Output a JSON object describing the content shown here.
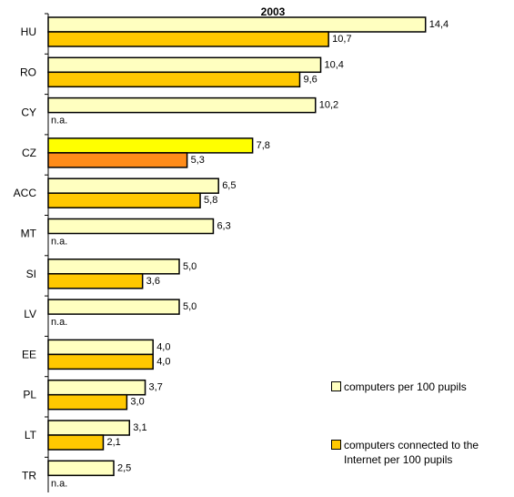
{
  "chart_data": {
    "type": "bar",
    "orientation": "horizontal",
    "title": "2003",
    "categories": [
      "HU",
      "RO",
      "CY",
      "CZ",
      "ACC",
      "MT",
      "SI",
      "LV",
      "EE",
      "PL",
      "LT",
      "TR"
    ],
    "series": [
      {
        "name": "computers per 100 pupils",
        "values": [
          14.4,
          10.4,
          10.2,
          7.8,
          6.5,
          6.3,
          5.0,
          5.0,
          4.0,
          3.7,
          3.1,
          2.5
        ],
        "labels": [
          "14,4",
          "10,4",
          "10,2",
          "7,8",
          "6,5",
          "6,3",
          "5,0",
          "5,0",
          "4,0",
          "3,7",
          "3,1",
          "2,5"
        ],
        "color": "#ffffc0"
      },
      {
        "name": "computers connected to the Internet per 100 pupils",
        "values": [
          10.7,
          9.6,
          null,
          5.3,
          5.8,
          null,
          3.6,
          null,
          4.0,
          3.0,
          2.1,
          null
        ],
        "labels": [
          "10,7",
          "9,6",
          "n.a.",
          "5,3",
          "5,8",
          "n.a.",
          "3,6",
          "n.a.",
          "4,0",
          "3,0",
          "2,1",
          "n.a."
        ],
        "color": "#ffc800"
      }
    ],
    "highlight": {
      "category": "CZ",
      "colors": [
        "#ffff00",
        "#ff8c1a"
      ]
    },
    "xlim": [
      0,
      15
    ],
    "legend_position": "right",
    "grid": false
  }
}
